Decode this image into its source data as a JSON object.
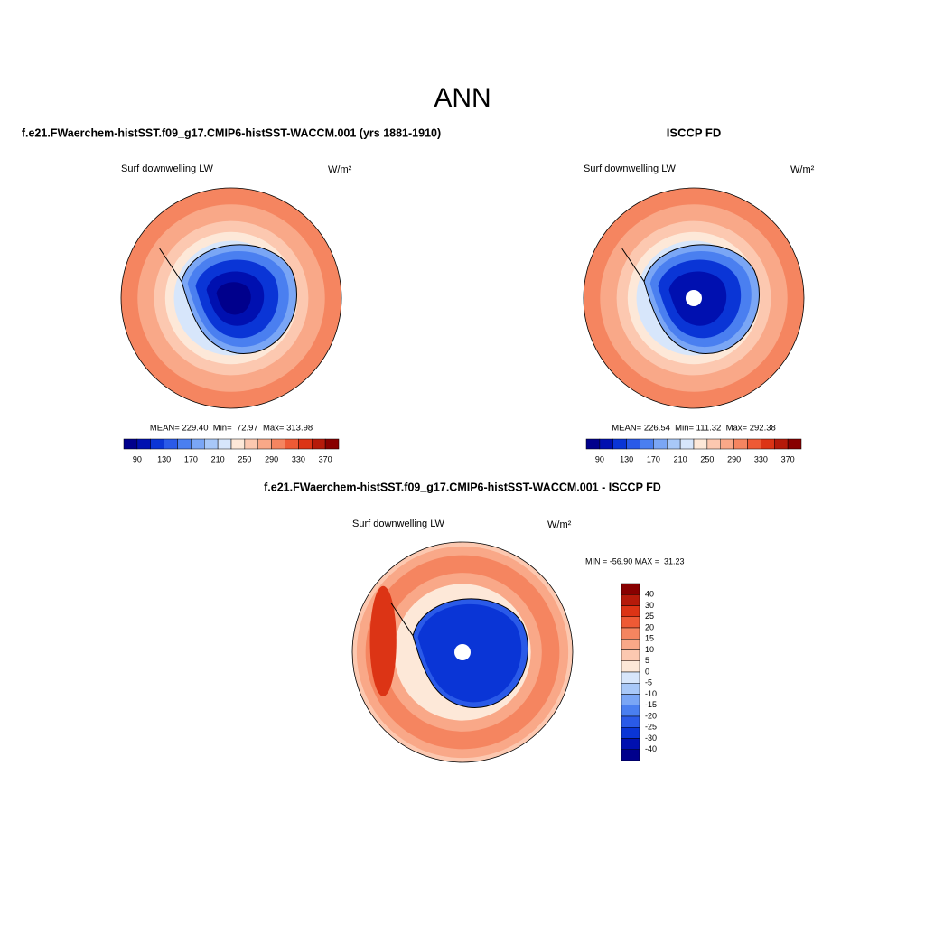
{
  "title": "ANN",
  "panels": [
    {
      "title": "f.e21.FWaerchem-histSST.f09_g17.CMIP6-histSST-WACCM.001 (yrs 1881-1910)",
      "variable": "Surf downwelling LW",
      "units": "W/m²",
      "stats": "MEAN= 229.40  Min=  72.97  Max= 313.98",
      "colorbar": {
        "labels": [
          90,
          130,
          170,
          210,
          250,
          290,
          330,
          370
        ],
        "colors": [
          "#00008c",
          "#0010b0",
          "#0a35d6",
          "#2a5ae8",
          "#4a7ff0",
          "#7aa6f5",
          "#a8c8f8",
          "#d7e6fb",
          "#fde8d8",
          "#fcc8b0",
          "#f9a888",
          "#f58560",
          "#ee5a35",
          "#dc3415",
          "#b51a0a",
          "#880000"
        ]
      }
    },
    {
      "title": "ISCCP FD",
      "variable": "Surf downwelling LW",
      "units": "W/m²",
      "stats": "MEAN= 226.54  Min= 111.32  Max= 292.38",
      "colorbar": {
        "labels": [
          90,
          130,
          170,
          210,
          250,
          290,
          330,
          370
        ],
        "colors": [
          "#00008c",
          "#0010b0",
          "#0a35d6",
          "#2a5ae8",
          "#4a7ff0",
          "#7aa6f5",
          "#a8c8f8",
          "#d7e6fb",
          "#fde8d8",
          "#fcc8b0",
          "#f9a888",
          "#f58560",
          "#ee5a35",
          "#dc3415",
          "#b51a0a",
          "#880000"
        ]
      }
    }
  ],
  "difference": {
    "title": "f.e21.FWaerchem-histSST.f09_g17.CMIP6-histSST-WACCM.001 - ISCCP FD",
    "variable": "Surf downwelling LW",
    "units": "W/m²",
    "stats": "MIN = -56.90 MAX =  31.23",
    "colorbar": {
      "labels": [
        40,
        30,
        25,
        20,
        15,
        10,
        5,
        0,
        -5,
        -10,
        -15,
        -20,
        -25,
        -30,
        -40
      ],
      "colors": [
        "#880000",
        "#b51a0a",
        "#dc3415",
        "#ee5a35",
        "#f58560",
        "#f9a888",
        "#fcc8b0",
        "#fde8d8",
        "#d7e6fb",
        "#a8c8f8",
        "#7aa6f5",
        "#4a7ff0",
        "#2a5ae8",
        "#0a35d6",
        "#0010b0",
        "#00008c"
      ]
    }
  }
}
